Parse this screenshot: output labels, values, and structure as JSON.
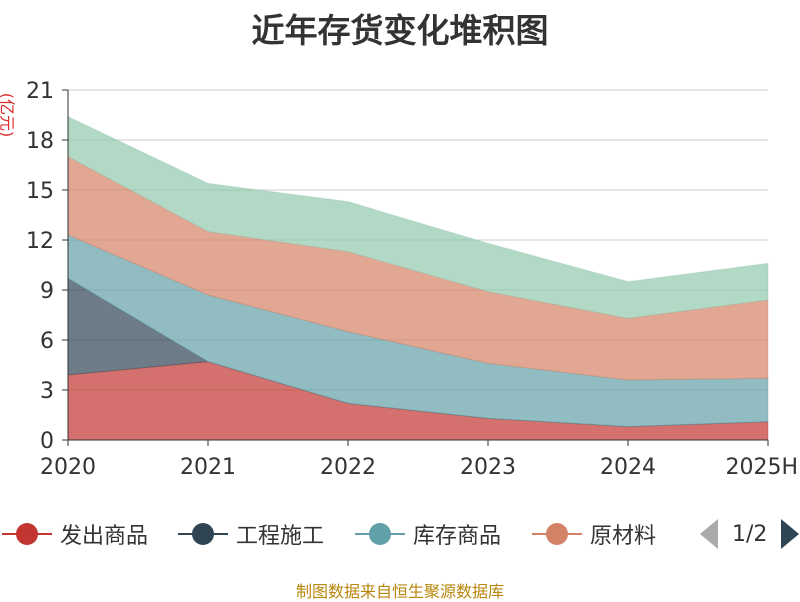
{
  "chart_data": {
    "type": "area",
    "stacked": true,
    "title": "近年存货变化堆积图",
    "ylabel": "(亿元)",
    "xlabel": "",
    "categories": [
      "2020",
      "2021",
      "2022",
      "2023",
      "2024",
      "2025H"
    ],
    "ylim": [
      0,
      21
    ],
    "yticks": [
      0,
      3,
      6,
      9,
      12,
      15,
      18,
      21
    ],
    "grid": true,
    "series": [
      {
        "name": "发出商品",
        "color": "#c23531",
        "values": [
          3.9,
          4.7,
          2.2,
          1.3,
          0.8,
          1.1
        ]
      },
      {
        "name": "工程施工",
        "color": "#2f4554",
        "values": [
          5.8,
          0.0,
          0.0,
          0.0,
          0.0,
          0.0
        ]
      },
      {
        "name": "库存商品",
        "color": "#61a0a8",
        "values": [
          2.6,
          4.0,
          4.3,
          3.3,
          2.8,
          2.6
        ]
      },
      {
        "name": "原材料",
        "color": "#d48265",
        "values": [
          4.7,
          3.8,
          4.8,
          4.3,
          3.7,
          4.7
        ]
      },
      {
        "name": "",
        "color": "#91c7ae",
        "values": [
          2.4,
          2.9,
          3.0,
          2.9,
          2.2,
          2.2
        ]
      }
    ]
  },
  "legend": {
    "items": [
      {
        "label": "发出商品",
        "color": "#c23531"
      },
      {
        "label": "工程施工",
        "color": "#2f4554"
      },
      {
        "label": "库存商品",
        "color": "#61a0a8"
      },
      {
        "label": "原材料",
        "color": "#d48265"
      }
    ],
    "page": "1/2",
    "prev_icon": "triangle-left-icon",
    "next_icon": "triangle-right-icon"
  },
  "source": "制图数据来自恒生聚源数据库"
}
